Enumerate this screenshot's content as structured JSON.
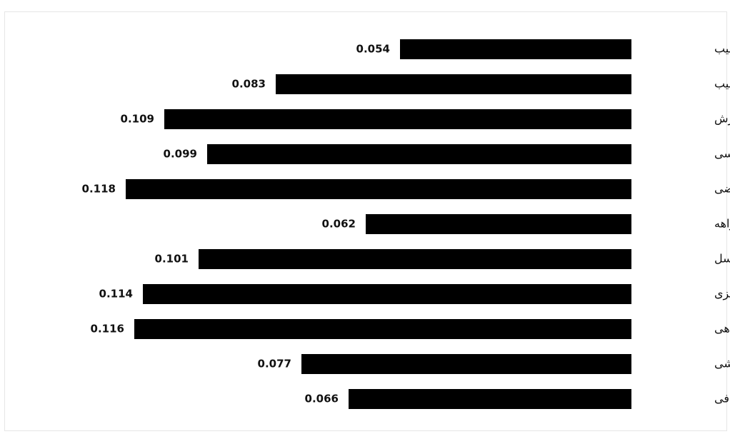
{
  "chart_data": {
    "type": "bar",
    "orientation": "horizontal",
    "categories": [
      "جهت شیب",
      "شیب",
      "بارش",
      "زمین‌شناسی",
      "کاربری اراضی",
      "آبراهه",
      "گسل",
      "لرزه خیزی",
      "پوشش گیاهی",
      "نقاط لغزشی",
      "توپوگرافی"
    ],
    "values": [
      0.054,
      0.083,
      0.109,
      0.099,
      0.118,
      0.062,
      0.101,
      0.114,
      0.116,
      0.077,
      0.066
    ],
    "value_labels": [
      "0.054",
      "0.083",
      "0.109",
      "0.099",
      "0.118",
      "0.062",
      "0.101",
      "0.114",
      "0.116",
      "0.077",
      "0.066"
    ],
    "title": "",
    "xlabel": "",
    "ylabel": "",
    "xlim": [
      0,
      0.13
    ],
    "grid": false,
    "legend": "none",
    "data_labels": true,
    "bar_color": "#000000"
  }
}
